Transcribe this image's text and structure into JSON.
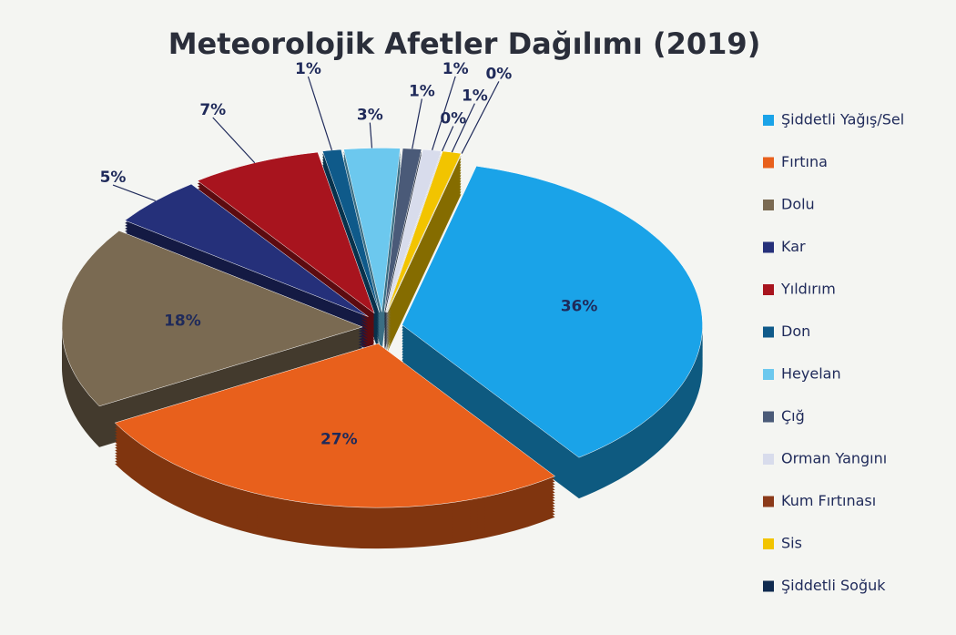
{
  "chart_data": {
    "type": "pie",
    "title": "Meteorolojik Afetler Dağılımı (2019)",
    "categories": [
      "Şiddetli Yağış/Sel",
      "Fırtına",
      "Dolu",
      "Kar",
      "Yıldırım",
      "Don",
      "Heyelan",
      "Çığ",
      "Orman Yangını",
      "Kum Fırtınası",
      "Sis",
      "Şiddetli Soğuk"
    ],
    "values": [
      36,
      27,
      18,
      5,
      7,
      1,
      3,
      1,
      1,
      0,
      1,
      0
    ],
    "value_labels": [
      "36%",
      "27%",
      "18%",
      "5%",
      "7%",
      "1%",
      "3%",
      "1%",
      "1%",
      "0%",
      "1%",
      "0%"
    ],
    "colors": [
      "#1aa3e8",
      "#e8601c",
      "#7a6a52",
      "#25307a",
      "#a8141e",
      "#0f5a8a",
      "#6cc8ee",
      "#4a5a78",
      "#d8dcec",
      "#8b3a1a",
      "#f2c400",
      "#0f2a4f"
    ],
    "legend": "right"
  }
}
